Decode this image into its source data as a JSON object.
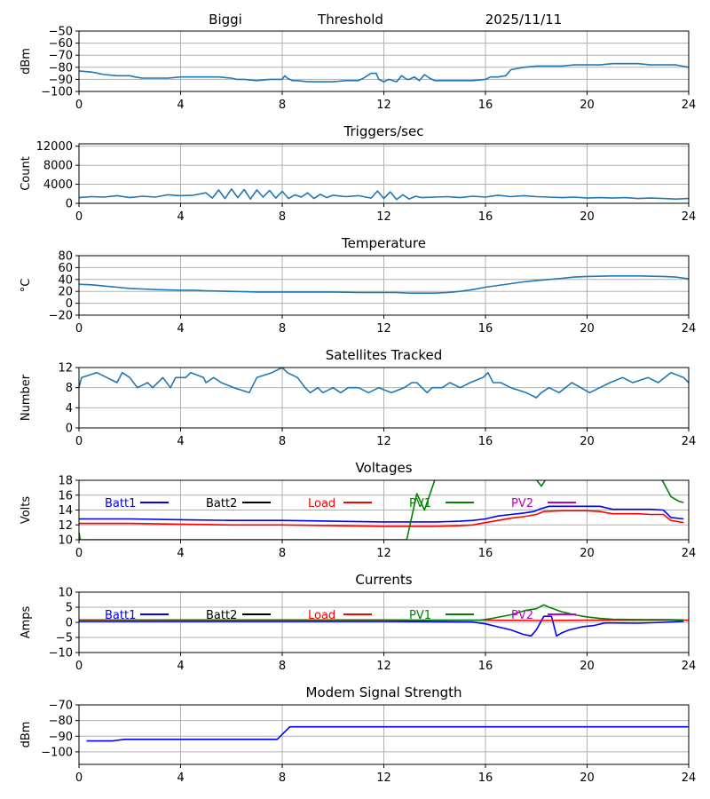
{
  "header": {
    "station": "Biggi",
    "mode": "Threshold",
    "date": "2025/11/11"
  },
  "colors": {
    "default": "#1f77b4",
    "batt1": "#0000ff",
    "batt2": "#000000",
    "load": "#ff0000",
    "pv1": "#008000",
    "pv2": "#bf00bf",
    "grid": "#b0b0b0"
  },
  "chart_data": [
    {
      "type": "line",
      "title": "",
      "ylabel": "dBm",
      "xlabel": "",
      "xlim": [
        0,
        24
      ],
      "xticks": [
        0,
        4,
        8,
        12,
        16,
        20,
        24
      ],
      "ylim": [
        -100,
        -50
      ],
      "yticks": [
        -100,
        -90,
        -80,
        -70,
        -60,
        -50
      ],
      "grid": true,
      "series": [
        {
          "name": "Threshold",
          "color": "#1f77b4",
          "x": [
            0,
            0.5,
            1,
            1.5,
            2,
            2.2,
            2.5,
            3,
            3.5,
            4,
            4.5,
            5,
            5.5,
            6,
            6.2,
            6.5,
            7,
            7.5,
            8,
            8.1,
            8.2,
            8.4,
            8.6,
            9,
            9.5,
            10,
            10.5,
            11,
            11.2,
            11.5,
            11.7,
            11.8,
            12,
            12.2,
            12.5,
            12.7,
            12.9,
            13,
            13.2,
            13.4,
            13.6,
            13.8,
            14,
            14.5,
            15,
            15.5,
            16,
            16.2,
            16.5,
            16.8,
            17,
            17.5,
            18,
            18.5,
            19,
            19.5,
            20,
            20.5,
            21,
            21.5,
            22,
            22.5,
            23,
            23.5,
            24
          ],
          "y": [
            -83,
            -84,
            -86,
            -87,
            -87,
            -88,
            -89,
            -89,
            -89,
            -88,
            -88,
            -88,
            -88,
            -89,
            -90,
            -90,
            -91,
            -90,
            -90,
            -87,
            -89,
            -91,
            -91,
            -92,
            -92,
            -92,
            -91,
            -91,
            -89,
            -85,
            -85,
            -90,
            -92,
            -90,
            -92,
            -87,
            -90,
            -90,
            -88,
            -91,
            -86,
            -89,
            -91,
            -91,
            -91,
            -91,
            -90,
            -88,
            -88,
            -87,
            -82,
            -80,
            -79,
            -79,
            -79,
            -78,
            -78,
            -78,
            -77,
            -77,
            -77,
            -78,
            -78,
            -78,
            -80
          ]
        }
      ]
    },
    {
      "type": "line",
      "title": "Triggers/sec",
      "ylabel": "Count",
      "xlabel": "",
      "xlim": [
        0,
        24
      ],
      "xticks": [
        0,
        4,
        8,
        12,
        16,
        20,
        24
      ],
      "ylim": [
        0,
        12500
      ],
      "yticks": [
        0,
        4000,
        8000,
        12000
      ],
      "grid": true,
      "series": [
        {
          "name": "Triggers",
          "color": "#1f77b4",
          "x": [
            0,
            0.5,
            1,
            1.5,
            2,
            2.5,
            3,
            3.5,
            4,
            4.5,
            5,
            5.25,
            5.5,
            5.75,
            6,
            6.25,
            6.5,
            6.75,
            7,
            7.25,
            7.5,
            7.75,
            8,
            8.25,
            8.5,
            8.75,
            9,
            9.25,
            9.5,
            9.75,
            10,
            10.5,
            11,
            11.5,
            11.75,
            12,
            12.25,
            12.5,
            12.75,
            13,
            13.25,
            13.5,
            14,
            14.5,
            15,
            15.5,
            16,
            16.5,
            17,
            17.5,
            18,
            18.5,
            19,
            19.5,
            20,
            20.5,
            21,
            21.5,
            22,
            22.5,
            23,
            23.5,
            24
          ],
          "y": [
            1200,
            1400,
            1300,
            1600,
            1200,
            1500,
            1300,
            1800,
            1600,
            1700,
            2200,
            1100,
            2800,
            1000,
            3000,
            1200,
            2900,
            900,
            2800,
            1300,
            2700,
            1100,
            2500,
            1000,
            1800,
            1300,
            2200,
            1000,
            1900,
            1200,
            1700,
            1400,
            1600,
            1100,
            2600,
            1000,
            2400,
            800,
            1800,
            900,
            1500,
            1200,
            1300,
            1400,
            1200,
            1500,
            1300,
            1700,
            1400,
            1600,
            1400,
            1300,
            1200,
            1300,
            1100,
            1200,
            1100,
            1200,
            1000,
            1100,
            1000,
            900,
            1000
          ]
        }
      ]
    },
    {
      "type": "line",
      "title": "Temperature",
      "ylabel": "°C",
      "xlabel": "",
      "xlim": [
        0,
        24
      ],
      "xticks": [
        0,
        4,
        8,
        12,
        16,
        20,
        24
      ],
      "ylim": [
        -20,
        80
      ],
      "yticks": [
        -20,
        0,
        20,
        40,
        60,
        80
      ],
      "grid": true,
      "series": [
        {
          "name": "Temperature",
          "color": "#1f77b4",
          "x": [
            0,
            0.5,
            1,
            1.5,
            2,
            2.5,
            3,
            4,
            4.5,
            5,
            6,
            7,
            8,
            9,
            10,
            11,
            12,
            12.5,
            13,
            13.5,
            14,
            14.5,
            15,
            15.5,
            16,
            16.5,
            17,
            17.5,
            18,
            18.5,
            19,
            19.5,
            20,
            21,
            22,
            23,
            23.5,
            24
          ],
          "y": [
            32,
            31,
            29,
            27,
            25,
            24,
            23,
            22,
            22,
            21,
            20,
            19,
            19,
            19,
            19,
            18,
            18,
            18,
            17,
            17,
            17,
            18,
            20,
            23,
            27,
            30,
            33,
            36,
            38,
            40,
            42,
            44,
            45,
            46,
            46,
            45,
            44,
            41
          ]
        }
      ]
    },
    {
      "type": "line",
      "title": "Satellites Tracked",
      "ylabel": "Number",
      "xlabel": "",
      "xlim": [
        0,
        24
      ],
      "xticks": [
        0,
        4,
        8,
        12,
        16,
        20,
        24
      ],
      "ylim": [
        0,
        12
      ],
      "yticks": [
        0,
        4,
        8,
        12
      ],
      "grid": true,
      "series": [
        {
          "name": "Satellites",
          "color": "#1f77b4",
          "x": [
            0,
            0.1,
            0.7,
            1.1,
            1.5,
            1.7,
            2.0,
            2.3,
            2.7,
            2.9,
            3.1,
            3.3,
            3.6,
            3.8,
            4.2,
            4.4,
            4.9,
            5.0,
            5.3,
            5.6,
            6.1,
            6.7,
            7.0,
            7.6,
            8.0,
            8.2,
            8.6,
            8.9,
            9.1,
            9.4,
            9.6,
            10.0,
            10.3,
            10.6,
            11.0,
            11.4,
            11.8,
            12.3,
            12.8,
            13.1,
            13.3,
            13.7,
            13.9,
            14.3,
            14.6,
            15.0,
            15.4,
            15.9,
            16.1,
            16.3,
            16.6,
            17.0,
            17.6,
            18.0,
            18.2,
            18.5,
            18.9,
            19.4,
            20.1,
            20.5,
            20.9,
            21.4,
            21.8,
            22.4,
            22.8,
            23.3,
            23.8,
            24
          ],
          "y": [
            8,
            10,
            11,
            10,
            9,
            11,
            10,
            8,
            9,
            8,
            9,
            10,
            8,
            10,
            10,
            11,
            10,
            9,
            10,
            9,
            8,
            7,
            10,
            11,
            12,
            11,
            10,
            8,
            7,
            8,
            7,
            8,
            7,
            8,
            8,
            7,
            8,
            7,
            8,
            9,
            9,
            7,
            8,
            8,
            9,
            8,
            9,
            10,
            11,
            9,
            9,
            8,
            7,
            6,
            7,
            8,
            7,
            9,
            7,
            8,
            9,
            10,
            9,
            10,
            9,
            11,
            10,
            9
          ]
        }
      ]
    },
    {
      "type": "line",
      "title": "Voltages",
      "ylabel": "Volts",
      "xlabel": "",
      "xlim": [
        0,
        24
      ],
      "xticks": [
        0,
        4,
        8,
        12,
        16,
        20,
        24
      ],
      "ylim": [
        10,
        18
      ],
      "yticks": [
        10,
        12,
        14,
        16,
        18
      ],
      "grid": true,
      "legend": [
        "Batt1",
        "Batt2",
        "Load",
        "PV1",
        "PV2"
      ],
      "series": [
        {
          "name": "Batt1",
          "color": "#0000ff",
          "x": [
            0,
            2,
            4,
            6,
            8,
            10,
            12,
            14,
            15,
            15.5,
            16,
            16.5,
            17,
            17.5,
            17.9,
            18.2,
            18.5,
            19,
            20,
            20.5,
            21,
            22,
            22.5,
            23,
            23.3,
            23.8
          ],
          "y": [
            12.8,
            12.8,
            12.7,
            12.6,
            12.6,
            12.5,
            12.4,
            12.4,
            12.5,
            12.6,
            12.8,
            13.2,
            13.4,
            13.6,
            13.8,
            14.2,
            14.5,
            14.5,
            14.5,
            14.5,
            14.1,
            14.1,
            14.1,
            14.0,
            13.0,
            12.8
          ]
        },
        {
          "name": "Load",
          "color": "#ff0000",
          "x": [
            0,
            2,
            4,
            6,
            8,
            10,
            12,
            13,
            14,
            15,
            15.5,
            16,
            16.5,
            17,
            17.5,
            18,
            18.3,
            19,
            20,
            20.5,
            21,
            22,
            22.5,
            23,
            23.3,
            23.8
          ],
          "y": [
            12.2,
            12.2,
            12.1,
            12.0,
            12.0,
            11.9,
            11.8,
            11.8,
            11.8,
            11.9,
            12.0,
            12.3,
            12.6,
            12.9,
            13.1,
            13.4,
            13.8,
            13.9,
            13.9,
            13.8,
            13.5,
            13.5,
            13.4,
            13.4,
            12.6,
            12.3
          ]
        },
        {
          "name": "PV1",
          "color": "#008000",
          "x": [
            0,
            0.05,
            12.9,
            13.3,
            13.6,
            14.0,
            14.3,
            17.8,
            18.2,
            18.5,
            22.8,
            23.3,
            23.6,
            23.8
          ],
          "y": [
            11.0,
            10.0,
            10.0,
            16.2,
            14.0,
            18.0,
            19.0,
            19.0,
            17.2,
            18.8,
            19.0,
            15.8,
            15.2,
            15.0
          ]
        }
      ]
    },
    {
      "type": "line",
      "title": "Currents",
      "ylabel": "Amps",
      "xlabel": "",
      "xlim": [
        0,
        24
      ],
      "xticks": [
        0,
        4,
        8,
        12,
        16,
        20,
        24
      ],
      "ylim": [
        -10,
        10
      ],
      "yticks": [
        -10,
        -5,
        0,
        5,
        10
      ],
      "grid": true,
      "legend": [
        "Batt1",
        "Batt2",
        "Load",
        "PV1",
        "PV2"
      ],
      "series": [
        {
          "name": "Batt1",
          "color": "#0000ff",
          "x": [
            0,
            4,
            8,
            12,
            15.5,
            16,
            16.5,
            17,
            17.5,
            17.8,
            18.0,
            18.3,
            18.6,
            18.8,
            19.0,
            19.3,
            19.8,
            20.3,
            20.7,
            21,
            22,
            23,
            23.8
          ],
          "y": [
            0.3,
            0.3,
            0.3,
            0.3,
            0.1,
            -0.5,
            -1.5,
            -2.5,
            -4.0,
            -4.5,
            -2.5,
            2.0,
            2.0,
            -4.5,
            -3.5,
            -2.5,
            -1.5,
            -1.0,
            -0.2,
            -0.2,
            -0.3,
            0.0,
            0.3
          ]
        },
        {
          "name": "Load",
          "color": "#ff0000",
          "x": [
            0,
            2,
            4,
            8,
            12,
            16,
            18,
            20,
            22,
            24
          ],
          "y": [
            0.8,
            0.8,
            0.8,
            0.8,
            0.8,
            0.7,
            0.6,
            0.7,
            0.7,
            0.7
          ]
        },
        {
          "name": "PV1",
          "color": "#008000",
          "x": [
            0,
            4,
            8,
            12,
            15.8,
            16.2,
            17,
            17.6,
            18.0,
            18.3,
            18.5,
            19.0,
            19.5,
            20.0,
            20.5,
            21,
            22,
            23,
            23.8
          ],
          "y": [
            0.5,
            0.6,
            0.6,
            0.6,
            0.7,
            1.2,
            2.5,
            4.0,
            4.5,
            5.8,
            5.0,
            3.5,
            2.5,
            1.8,
            1.3,
            1.0,
            0.9,
            0.9,
            0.8
          ]
        }
      ]
    },
    {
      "type": "line",
      "title": "Modem Signal Strength",
      "ylabel": "dBm",
      "xlabel": "",
      "xlim": [
        0,
        24
      ],
      "xticks": [
        0,
        4,
        8,
        12,
        16,
        20,
        24
      ],
      "ylim": [
        -108,
        -70
      ],
      "yticks": [
        -100,
        -90,
        -80,
        -70
      ],
      "grid": true,
      "series": [
        {
          "name": "Modem",
          "color": "#0000ff",
          "x": [
            0.3,
            1.3,
            1.8,
            7.8,
            8.3,
            24
          ],
          "y": [
            -93,
            -93,
            -92,
            -92,
            -84,
            -84
          ]
        }
      ]
    }
  ]
}
